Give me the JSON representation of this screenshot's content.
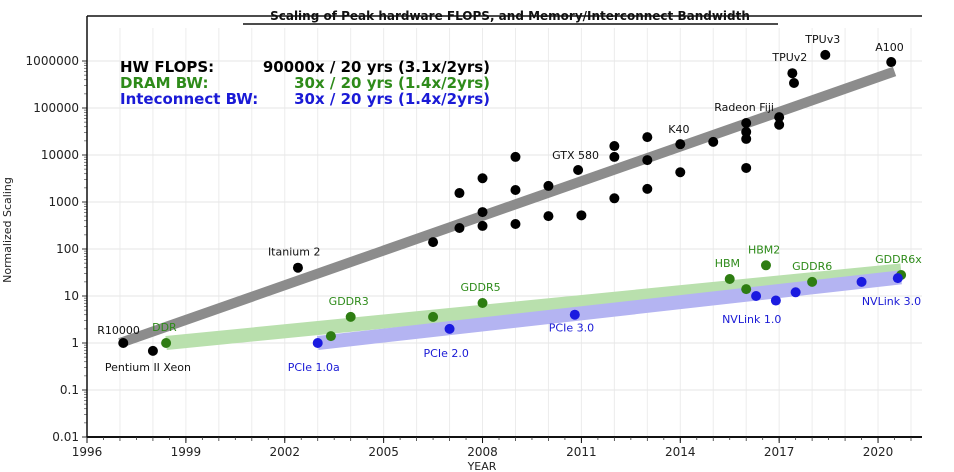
{
  "chart_data": {
    "type": "scatter",
    "title": "Scaling of Peak hardware FLOPS, and Memory/Interconnect Bandwidth",
    "xlabel": "YEAR",
    "ylabel": "Normalized Scaling",
    "xlim": [
      1996,
      2021.3
    ],
    "ylim": [
      0.01,
      5000000
    ],
    "yscale": "log",
    "grid": true,
    "xticks": [
      1996,
      1999,
      2002,
      2005,
      2008,
      2011,
      2014,
      2017,
      2020
    ],
    "yticks": [
      {
        "v": 0.01,
        "label": "0.01"
      },
      {
        "v": 0.1,
        "label": "0.1"
      },
      {
        "v": 1,
        "label": "1"
      },
      {
        "v": 10,
        "label": "10"
      },
      {
        "v": 100,
        "label": "100"
      },
      {
        "v": 1000,
        "label": "1000"
      },
      {
        "v": 10000,
        "label": "10000"
      },
      {
        "v": 100000,
        "label": "100000"
      },
      {
        "v": 1000000,
        "label": "1000000"
      }
    ],
    "annotations": [
      {
        "name": "HW FLOPS:",
        "text": "90000x / 20 yrs (3.1x/2yrs)",
        "color": "#000000"
      },
      {
        "name": "DRAM BW:",
        "text": "30x / 20 yrs (1.4x/2yrs)",
        "color": "#2e8b1a"
      },
      {
        "name": "Inteconnect BW:",
        "text": "30x / 20 yrs (1.4x/2yrs)",
        "color": "#1a1ad6"
      }
    ],
    "series": [
      {
        "name": "HW FLOPS",
        "color": "#000000",
        "trend_color": "#8c8c8c",
        "trend": [
          [
            1997.0,
            1
          ],
          [
            2020.5,
            600000
          ]
        ],
        "points": [
          {
            "x": 1997.1,
            "y": 1,
            "label": "R10000"
          },
          {
            "x": 1998.0,
            "y": 0.68,
            "label": "Pentium II Xeon"
          },
          {
            "x": 2002.4,
            "y": 40,
            "label": "Itanium 2"
          },
          {
            "x": 2006.5,
            "y": 140
          },
          {
            "x": 2007.3,
            "y": 280
          },
          {
            "x": 2007.3,
            "y": 1550
          },
          {
            "x": 2008.0,
            "y": 310
          },
          {
            "x": 2008.0,
            "y": 610
          },
          {
            "x": 2008.0,
            "y": 3200
          },
          {
            "x": 2009.0,
            "y": 340
          },
          {
            "x": 2009.0,
            "y": 1800
          },
          {
            "x": 2009.0,
            "y": 9100
          },
          {
            "x": 2010.0,
            "y": 500
          },
          {
            "x": 2010.0,
            "y": 2200
          },
          {
            "x": 2010.9,
            "y": 4800,
            "label": "GTX 580"
          },
          {
            "x": 2011.0,
            "y": 520
          },
          {
            "x": 2012.0,
            "y": 1200
          },
          {
            "x": 2012.0,
            "y": 9100
          },
          {
            "x": 2012.0,
            "y": 15500
          },
          {
            "x": 2013.0,
            "y": 1900
          },
          {
            "x": 2013.0,
            "y": 7800
          },
          {
            "x": 2013.0,
            "y": 24000
          },
          {
            "x": 2014.0,
            "y": 4300
          },
          {
            "x": 2014.0,
            "y": 17000,
            "label": "K40"
          },
          {
            "x": 2015.0,
            "y": 19000
          },
          {
            "x": 2016.0,
            "y": 5300
          },
          {
            "x": 2016.0,
            "y": 22000
          },
          {
            "x": 2016.0,
            "y": 31000
          },
          {
            "x": 2016.0,
            "y": 48000,
            "label": "Radeon Fiji"
          },
          {
            "x": 2017.0,
            "y": 44000
          },
          {
            "x": 2017.0,
            "y": 64000
          },
          {
            "x": 2017.4,
            "y": 550000,
            "label": "TPUv2"
          },
          {
            "x": 2017.45,
            "y": 340000
          },
          {
            "x": 2018.4,
            "y": 1350000,
            "label": "TPUv3"
          },
          {
            "x": 2020.4,
            "y": 950000,
            "label": "A100"
          }
        ]
      },
      {
        "name": "DRAM BW",
        "color": "#2e7d12",
        "trend_color": "#b9e0ad",
        "trend": [
          [
            1998.4,
            1
          ],
          [
            2020.7,
            35
          ]
        ],
        "points": [
          {
            "x": 1998.4,
            "y": 1,
            "label": "DDR"
          },
          {
            "x": 2003.4,
            "y": 1.4
          },
          {
            "x": 2004.0,
            "y": 3.6,
            "label": "GDDR3"
          },
          {
            "x": 2006.5,
            "y": 3.6
          },
          {
            "x": 2008.0,
            "y": 7.1,
            "label": "GDDR5"
          },
          {
            "x": 2015.5,
            "y": 23,
            "label": "HBM"
          },
          {
            "x": 2016.0,
            "y": 14
          },
          {
            "x": 2016.6,
            "y": 45,
            "label": "HBM2"
          },
          {
            "x": 2018.0,
            "y": 20,
            "label": "GDDR6"
          },
          {
            "x": 2020.7,
            "y": 28,
            "label": "GDDR6x"
          }
        ]
      },
      {
        "name": "Inteconnect BW",
        "color": "#1a1ae0",
        "trend_color": "#b4b4f2",
        "trend": [
          [
            2003.0,
            1
          ],
          [
            2020.7,
            25
          ]
        ],
        "points": [
          {
            "x": 2003.0,
            "y": 1,
            "label": "PCIe 1.0a"
          },
          {
            "x": 2007.0,
            "y": 2,
            "label": "PCIe 2.0"
          },
          {
            "x": 2010.8,
            "y": 4,
            "label": "PCIe 3.0"
          },
          {
            "x": 2016.3,
            "y": 10,
            "label": "NVLink 1.0"
          },
          {
            "x": 2016.9,
            "y": 8
          },
          {
            "x": 2017.5,
            "y": 12
          },
          {
            "x": 2019.5,
            "y": 20
          },
          {
            "x": 2020.6,
            "y": 24,
            "label": "NVLink 3.0"
          }
        ]
      }
    ]
  }
}
